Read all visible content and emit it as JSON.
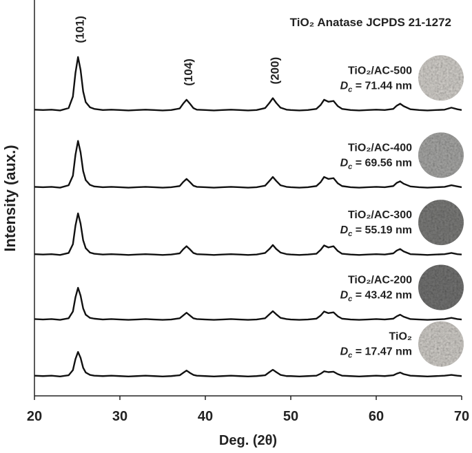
{
  "chart_data": {
    "type": "line",
    "title": "TiO₂ Anatase JCPDS 21-1272",
    "x_label": "Deg. (2θ)",
    "y_label": "Intensity (aux.)",
    "xlim": [
      20,
      70
    ],
    "xticks": [
      20,
      30,
      40,
      50,
      60,
      70
    ],
    "ylim": [
      0,
      100
    ],
    "x": [
      20,
      21,
      22,
      23,
      24,
      24.5,
      24.8,
      25.1,
      25.4,
      25.7,
      26,
      26.5,
      27,
      28,
      29,
      30,
      31,
      32,
      33,
      34,
      35,
      36,
      37,
      37.4,
      37.8,
      38.2,
      38.6,
      39,
      40,
      41,
      42,
      43,
      44,
      45,
      46,
      47,
      47.5,
      47.9,
      48.3,
      48.8,
      49.5,
      50,
      51,
      52,
      53,
      53.5,
      53.9,
      54.4,
      55,
      55.5,
      56,
      57,
      58,
      59,
      60,
      61,
      62,
      62.4,
      62.8,
      63.2,
      64,
      65,
      66,
      67,
      68,
      68.8,
      69.5,
      70
    ],
    "annotations": [
      {
        "text": "(101)",
        "x": 25.1
      },
      {
        "text": "(104)",
        "x": 37.8
      },
      {
        "text": "(200)",
        "x": 47.9
      }
    ],
    "series": [
      {
        "name": "TiO₂/AC-500",
        "color": "#111111",
        "size_label": {
          "symbol": "D",
          "subscript": "c",
          "text": " = 71.44 nm"
        },
        "values": [
          72.3,
          72.2,
          72.3,
          72.1,
          72.7,
          75.6,
          81.6,
          85.6,
          82.3,
          76.9,
          74.2,
          72.9,
          72.5,
          72.2,
          72.3,
          72.2,
          72.1,
          72.2,
          72.3,
          72.2,
          72.1,
          72.2,
          72.6,
          73.8,
          74.8,
          73.8,
          72.7,
          72.3,
          72.2,
          72.1,
          72.2,
          72.3,
          72.2,
          72.1,
          72.2,
          72.7,
          74.0,
          75.2,
          74.0,
          72.8,
          72.3,
          72.2,
          72.1,
          72.2,
          72.5,
          73.5,
          74.8,
          74.3,
          74.5,
          73.2,
          72.5,
          72.2,
          72.1,
          72.2,
          72.3,
          72.2,
          72.5,
          73.3,
          73.8,
          73.2,
          72.4,
          72.2,
          72.1,
          72.2,
          72.3,
          72.8,
          72.4,
          72.2
        ]
      },
      {
        "name": "TiO₂/AC-400",
        "color": "#111111",
        "size_label": {
          "symbol": "D",
          "subscript": "c",
          "text": " = 69.56 nm"
        },
        "values": [
          52.8,
          52.7,
          52.8,
          52.6,
          53.2,
          55.6,
          60.9,
          64.4,
          61.5,
          56.8,
          54.5,
          53.3,
          52.9,
          52.7,
          52.8,
          52.7,
          52.6,
          52.7,
          52.8,
          52.7,
          52.6,
          52.7,
          53.0,
          54.0,
          54.8,
          54.0,
          53.1,
          52.8,
          52.7,
          52.6,
          52.7,
          52.8,
          52.7,
          52.6,
          52.7,
          53.1,
          54.3,
          55.3,
          54.3,
          53.2,
          52.8,
          52.7,
          52.6,
          52.7,
          53.0,
          54.0,
          55.3,
          54.8,
          55.0,
          53.7,
          53.0,
          52.7,
          52.6,
          52.7,
          52.8,
          52.7,
          53.0,
          53.8,
          54.2,
          53.6,
          52.9,
          52.7,
          52.6,
          52.7,
          52.8,
          53.2,
          52.9,
          52.7
        ]
      },
      {
        "name": "TiO₂/AC-300",
        "color": "#111111",
        "size_label": {
          "symbol": "D",
          "subscript": "c",
          "text": " = 55.19 nm"
        },
        "values": [
          35.8,
          35.7,
          35.8,
          35.6,
          36.1,
          38.3,
          43.0,
          46.1,
          43.5,
          39.3,
          37.3,
          36.2,
          35.9,
          35.7,
          35.8,
          35.7,
          35.6,
          35.7,
          35.8,
          35.7,
          35.6,
          35.7,
          36.0,
          37.0,
          37.8,
          37.0,
          36.1,
          35.8,
          35.7,
          35.6,
          35.7,
          35.8,
          35.7,
          35.6,
          35.7,
          36.1,
          37.1,
          38.1,
          37.1,
          36.2,
          35.8,
          35.7,
          35.6,
          35.7,
          35.9,
          36.9,
          38.0,
          37.5,
          37.8,
          36.6,
          35.9,
          35.7,
          35.6,
          35.7,
          35.8,
          35.7,
          36.0,
          36.7,
          37.1,
          36.5,
          35.8,
          35.7,
          35.6,
          35.7,
          35.8,
          36.1,
          35.8,
          35.7
        ]
      },
      {
        "name": "TiO₂/AC-200",
        "color": "#111111",
        "size_label": {
          "symbol": "D",
          "subscript": "c",
          "text": " = 43.42 nm"
        },
        "values": [
          19.4,
          19.3,
          19.4,
          19.2,
          19.6,
          21.3,
          24.9,
          27.3,
          25.3,
          22.1,
          20.5,
          19.7,
          19.5,
          19.3,
          19.4,
          19.3,
          19.2,
          19.3,
          19.4,
          19.3,
          19.2,
          19.3,
          19.6,
          20.3,
          21.0,
          20.3,
          19.6,
          19.4,
          19.3,
          19.2,
          19.3,
          19.4,
          19.3,
          19.2,
          19.3,
          19.6,
          20.6,
          21.4,
          20.6,
          19.7,
          19.4,
          19.3,
          19.2,
          19.3,
          19.5,
          20.3,
          21.3,
          20.9,
          21.1,
          20.1,
          19.5,
          19.3,
          19.2,
          19.3,
          19.4,
          19.3,
          19.5,
          20.1,
          20.5,
          20.0,
          19.4,
          19.3,
          19.2,
          19.3,
          19.4,
          19.7,
          19.4,
          19.3
        ]
      },
      {
        "name": "TiO₂",
        "color": "#111111",
        "size_label": {
          "symbol": "D",
          "subscript": "c",
          "text": " = 17.47 nm"
        },
        "values": [
          5.1,
          5.0,
          5.1,
          4.9,
          5.2,
          6.5,
          9.3,
          11.1,
          9.6,
          7.1,
          5.9,
          5.3,
          5.1,
          5.0,
          5.1,
          5.0,
          4.9,
          5.0,
          5.1,
          5.0,
          4.9,
          5.0,
          5.2,
          5.8,
          6.4,
          5.8,
          5.3,
          5.1,
          5.0,
          4.9,
          5.0,
          5.1,
          5.0,
          4.9,
          5.0,
          5.2,
          6.0,
          6.6,
          6.0,
          5.3,
          5.0,
          5.0,
          4.9,
          5.0,
          5.1,
          5.6,
          6.2,
          6.0,
          6.1,
          5.5,
          5.1,
          5.0,
          4.9,
          5.0,
          5.1,
          5.0,
          5.2,
          5.6,
          5.9,
          5.5,
          5.1,
          5.0,
          4.9,
          5.0,
          5.1,
          5.3,
          5.1,
          5.0
        ]
      }
    ]
  }
}
